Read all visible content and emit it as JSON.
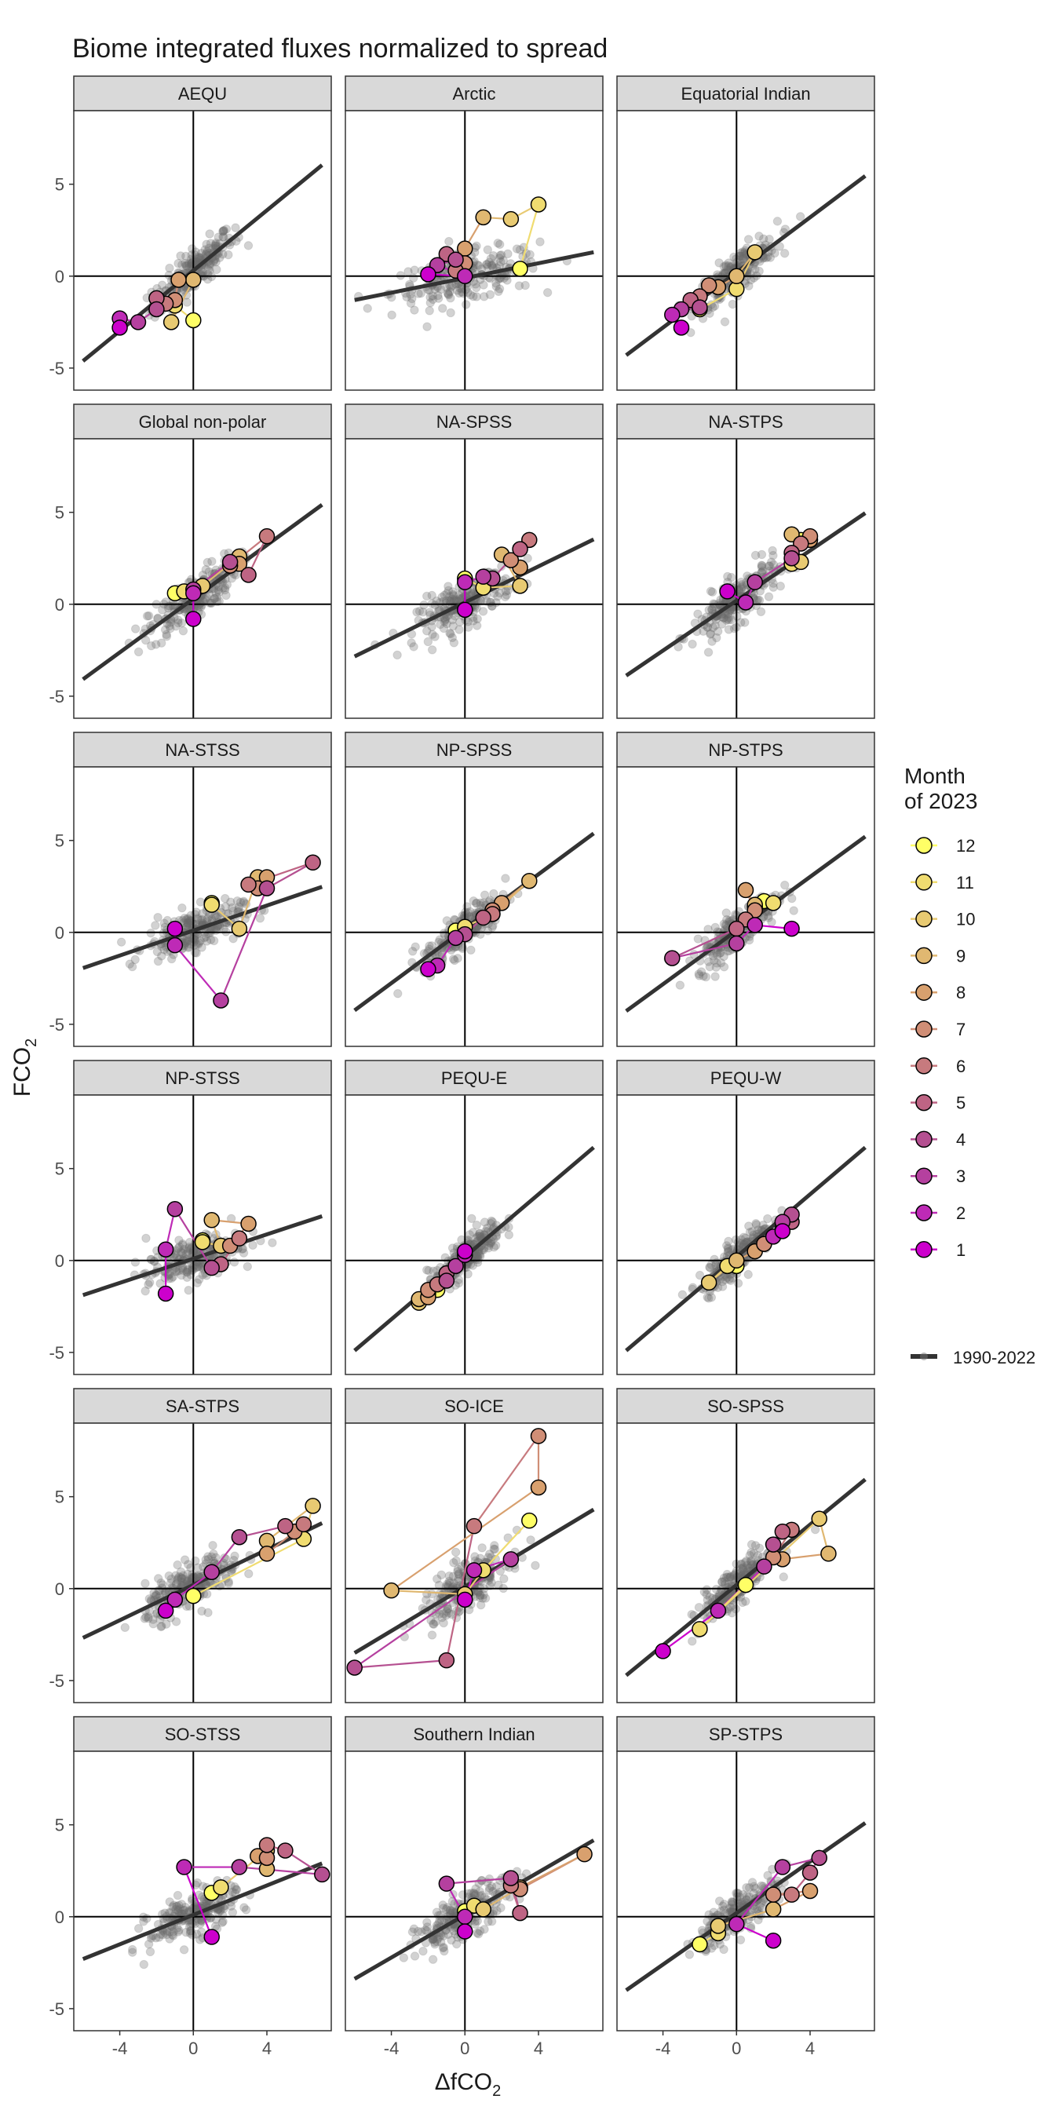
{
  "chart_data": {
    "type": "scatter",
    "title": "Biome integrated fluxes normalized to spread",
    "xlabel": "ΔfCO",
    "xlabel_sub": "2",
    "ylabel": "FCO",
    "ylabel_sub": "2",
    "xlim": [
      -6.5,
      7.5
    ],
    "ylim": [
      -6.2,
      9.0
    ],
    "x_ticks": [
      -4,
      0,
      4
    ],
    "y_ticks": [
      -5,
      0,
      5
    ],
    "x_tick_labels": [
      "-4",
      "0",
      "4"
    ],
    "y_tick_labels": [
      "-5",
      "0",
      "5"
    ],
    "legend": {
      "title_line1": "Month",
      "title_line2": "of 2023",
      "position": "right",
      "months": [
        "12",
        "11",
        "10",
        "9",
        "8",
        "7",
        "6",
        "5",
        "4",
        "3",
        "2",
        "1"
      ],
      "line_label": "1990-2022"
    },
    "month_colors": [
      "#CC00CC",
      "#BE2AB6",
      "#B5409F",
      "#B55091",
      "#BE6484",
      "#C77A7E",
      "#D08E76",
      "#D8A06E",
      "#E0B871",
      "#E8CA72",
      "#F0DC70",
      "#FFFF66"
    ],
    "panels": [
      {
        "name": "AEQU",
        "slope": 0.82,
        "intercept": 0.3,
        "spread": [
          1.1,
          1.0
        ],
        "points": [
          [
            -4,
            -2.8
          ],
          [
            -4,
            -2.3
          ],
          [
            -3,
            -2.5
          ],
          [
            -2,
            -1.8
          ],
          [
            -2,
            -1.2
          ],
          [
            -1.5,
            -1.5
          ],
          [
            -1,
            -1.3
          ],
          [
            -0.8,
            -0.2
          ],
          [
            0,
            -0.2
          ],
          [
            -1.2,
            -2.5
          ],
          [
            -1,
            -1.6
          ],
          [
            0,
            -2.4
          ]
        ]
      },
      {
        "name": "Arctic",
        "slope": 0.2,
        "intercept": -0.1,
        "spread": [
          2.0,
          1.2
        ],
        "points": [
          [
            -2,
            0.1
          ],
          [
            0,
            0
          ],
          [
            -1.5,
            0.6
          ],
          [
            -0.5,
            0.9
          ],
          [
            -1,
            1.2
          ],
          [
            -0.5,
            0.3
          ],
          [
            0,
            0.7
          ],
          [
            0,
            1.5
          ],
          [
            1,
            3.2
          ],
          [
            2.5,
            3.1
          ],
          [
            4,
            3.9
          ],
          [
            3,
            0.4
          ]
        ]
      },
      {
        "name": "Equatorial Indian",
        "slope": 0.75,
        "intercept": 0.2,
        "spread": [
          1.1,
          1.0
        ],
        "points": [
          [
            -3,
            -2.8
          ],
          [
            -3.5,
            -2.1
          ],
          [
            -3,
            -1.8
          ],
          [
            -2,
            -1.7
          ],
          [
            -2.5,
            -1.3
          ],
          [
            -2,
            -1.1
          ],
          [
            -1.5,
            -0.5
          ],
          [
            -1,
            -0.6
          ],
          [
            0,
            0
          ],
          [
            1,
            1.3
          ],
          [
            0,
            -0.7
          ],
          [
            -2,
            -1.8
          ]
        ]
      },
      {
        "name": "Global non-polar",
        "slope": 0.73,
        "intercept": 0.3,
        "spread": [
          1.2,
          1.1
        ],
        "points": [
          [
            0,
            -0.8
          ],
          [
            0,
            0.6
          ],
          [
            0,
            0.8
          ],
          [
            2,
            2.3
          ],
          [
            3,
            1.6
          ],
          [
            4,
            3.7
          ],
          [
            2,
            2.1
          ],
          [
            2.5,
            2.2
          ],
          [
            2.5,
            2.6
          ],
          [
            0.5,
            1.0
          ],
          [
            -0.5,
            0.7
          ],
          [
            -1,
            0.6
          ]
        ]
      },
      {
        "name": "NA-SPSS",
        "slope": 0.49,
        "intercept": 0.1,
        "spread": [
          1.3,
          1.1
        ],
        "points": [
          [
            0,
            -0.3
          ],
          [
            0,
            1.2
          ],
          [
            1,
            1.5
          ],
          [
            1.5,
            1.4
          ],
          [
            3,
            3.0
          ],
          [
            3.5,
            3.5
          ],
          [
            2.5,
            2.4
          ],
          [
            3,
            2.0
          ],
          [
            2,
            2.7
          ],
          [
            3,
            1.0
          ],
          [
            1,
            0.9
          ],
          [
            0,
            1.4
          ]
        ]
      },
      {
        "name": "NA-STPS",
        "slope": 0.68,
        "intercept": 0.2,
        "spread": [
          1.2,
          1.1
        ],
        "points": [
          [
            -0.5,
            0.7
          ],
          [
            0.5,
            0.1
          ],
          [
            1,
            1.2
          ],
          [
            3,
            2.5
          ],
          [
            3,
            2.8
          ],
          [
            3.5,
            3.3
          ],
          [
            4,
            3.7
          ],
          [
            4,
            3.5
          ],
          [
            3,
            3.8
          ],
          [
            3.5,
            2.3
          ],
          [
            3,
            2.2
          ],
          [
            3.5,
            3.5
          ]
        ]
      },
      {
        "name": "NA-STSS",
        "slope": 0.34,
        "intercept": 0.1,
        "spread": [
          1.3,
          1.0
        ],
        "points": [
          [
            -1,
            0.2
          ],
          [
            -1,
            -0.7
          ],
          [
            1.5,
            -3.7
          ],
          [
            4,
            2.4
          ],
          [
            6.5,
            3.8
          ],
          [
            3,
            2.6
          ],
          [
            3.5,
            2.4
          ],
          [
            4,
            3.0
          ],
          [
            3.5,
            3.0
          ],
          [
            2.5,
            0.2
          ],
          [
            1,
            1.5
          ],
          [
            1,
            1.6
          ]
        ]
      },
      {
        "name": "NP-SPSS",
        "slope": 0.74,
        "intercept": 0.2,
        "spread": [
          1.1,
          1.0
        ],
        "points": [
          [
            -2,
            -2.0
          ],
          [
            -1.5,
            -1.8
          ],
          [
            -0.5,
            -0.3
          ],
          [
            0,
            -0.1
          ],
          [
            1,
            0.8
          ],
          [
            1.5,
            1.0
          ],
          [
            1.5,
            1.2
          ],
          [
            2,
            1.6
          ],
          [
            3.5,
            2.8
          ],
          [
            1.5,
            1.0
          ],
          [
            0,
            0.3
          ],
          [
            -0.5,
            0.1
          ]
        ]
      },
      {
        "name": "NP-STPS",
        "slope": 0.73,
        "intercept": 0.1,
        "spread": [
          1.1,
          1.0
        ],
        "points": [
          [
            3,
            0.2
          ],
          [
            1,
            0.4
          ],
          [
            0,
            -0.6
          ],
          [
            -3.5,
            -1.4
          ],
          [
            0,
            0.2
          ],
          [
            0.5,
            0.7
          ],
          [
            1,
            1.2
          ],
          [
            0.5,
            2.3
          ],
          [
            1,
            1.5
          ],
          [
            1,
            1.4
          ],
          [
            2,
            1.6
          ],
          [
            1.5,
            1.7
          ]
        ]
      },
      {
        "name": "NP-STSS",
        "slope": 0.33,
        "intercept": 0.1,
        "spread": [
          1.3,
          1.0
        ],
        "points": [
          [
            -1.5,
            -1.8
          ],
          [
            -1.5,
            0.6
          ],
          [
            -1,
            2.8
          ],
          [
            1,
            -0.4
          ],
          [
            1.5,
            -0.2
          ],
          [
            2.5,
            1.2
          ],
          [
            2,
            0.8
          ],
          [
            3,
            2.0
          ],
          [
            1,
            2.2
          ],
          [
            1.5,
            0.8
          ],
          [
            0.5,
            1.0
          ],
          [
            0.5,
            1.1
          ]
        ]
      },
      {
        "name": "PEQU-E",
        "slope": 0.85,
        "intercept": 0.2,
        "spread": [
          1.0,
          0.9
        ],
        "points": [
          [
            0,
            0.5
          ],
          [
            0,
            0.3
          ],
          [
            -0.5,
            -0.3
          ],
          [
            -1,
            -1.1
          ],
          [
            -1,
            -0.7
          ],
          [
            -1.5,
            -1.3
          ],
          [
            -2,
            -1.6
          ],
          [
            -2,
            -2.0
          ],
          [
            -2.5,
            -2.1
          ],
          [
            -2.5,
            -2.3
          ],
          [
            -2,
            -1.8
          ],
          [
            -1.5,
            -1.6
          ]
        ]
      },
      {
        "name": "PEQU-W",
        "slope": 0.85,
        "intercept": 0.2,
        "spread": [
          1.0,
          0.9
        ],
        "points": [
          [
            2.5,
            1.6
          ],
          [
            2,
            1.3
          ],
          [
            2.5,
            2.1
          ],
          [
            3,
            2.5
          ],
          [
            3,
            2.1
          ],
          [
            2.5,
            1.7
          ],
          [
            1.5,
            0.9
          ],
          [
            1,
            0.5
          ],
          [
            0,
            0
          ],
          [
            -1.5,
            -1.2
          ],
          [
            -0.5,
            -0.3
          ],
          [
            0,
            -0.3
          ]
        ]
      },
      {
        "name": "SA-STPS",
        "slope": 0.48,
        "intercept": 0.2,
        "spread": [
          1.3,
          1.1
        ],
        "points": [
          [
            -1.5,
            -1.2
          ],
          [
            -1,
            -0.6
          ],
          [
            1,
            0.9
          ],
          [
            2.5,
            2.8
          ],
          [
            5,
            3.4
          ],
          [
            6,
            3.5
          ],
          [
            5.5,
            3.1
          ],
          [
            4,
            1.9
          ],
          [
            4,
            2.6
          ],
          [
            6.5,
            4.5
          ],
          [
            6,
            2.7
          ],
          [
            0,
            -0.4
          ]
        ]
      },
      {
        "name": "SO-ICE",
        "slope": 0.6,
        "intercept": 0.1,
        "spread": [
          1.2,
          1.2
        ],
        "points": [
          [
            0,
            -0.6
          ],
          [
            0.5,
            1.0
          ],
          [
            2.5,
            1.6
          ],
          [
            -6,
            -4.3
          ],
          [
            -1,
            -3.9
          ],
          [
            0.5,
            3.4
          ],
          [
            4,
            8.3
          ],
          [
            4,
            5.5
          ],
          [
            -4,
            -0.1
          ],
          [
            0,
            -0.3
          ],
          [
            1,
            1.0
          ],
          [
            3.5,
            3.7
          ]
        ]
      },
      {
        "name": "SO-SPSS",
        "slope": 0.82,
        "intercept": 0.2,
        "spread": [
          1.0,
          1.0
        ],
        "points": [
          [
            -4,
            -3.4
          ],
          [
            -1,
            -1.2
          ],
          [
            1.5,
            1.2
          ],
          [
            2,
            2.4
          ],
          [
            2.5,
            3.1
          ],
          [
            3,
            3.2
          ],
          [
            2,
            1.7
          ],
          [
            2.5,
            1.6
          ],
          [
            5,
            1.9
          ],
          [
            4.5,
            3.8
          ],
          [
            -2,
            -2.2
          ],
          [
            0.5,
            0.2
          ]
        ]
      },
      {
        "name": "SO-STSS",
        "slope": 0.4,
        "intercept": 0.1,
        "spread": [
          1.2,
          1.1
        ],
        "points": [
          [
            1,
            -1.1
          ],
          [
            -0.5,
            2.7
          ],
          [
            2.5,
            2.7
          ],
          [
            7,
            2.3
          ],
          [
            5,
            3.6
          ],
          [
            4,
            3.9
          ],
          [
            4,
            3.2
          ],
          [
            3.5,
            3.3
          ],
          [
            4,
            2.6
          ],
          [
            4,
            3.6
          ],
          [
            1.5,
            1.6
          ],
          [
            1,
            1.3
          ]
        ]
      },
      {
        "name": "Southern Indian",
        "slope": 0.58,
        "intercept": 0.1,
        "spread": [
          1.3,
          1.1
        ],
        "points": [
          [
            0,
            -0.8
          ],
          [
            0,
            0
          ],
          [
            -1,
            1.8
          ],
          [
            2.5,
            2.1
          ],
          [
            3,
            0.2
          ],
          [
            2.5,
            1.7
          ],
          [
            3,
            1.5
          ],
          [
            6.5,
            3.4
          ],
          [
            3,
            1.6
          ],
          [
            1,
            0.4
          ],
          [
            0.5,
            0.6
          ],
          [
            0,
            0.3
          ]
        ]
      },
      {
        "name": "SP-STPS",
        "slope": 0.7,
        "intercept": 0.2,
        "spread": [
          1.1,
          1.0
        ],
        "points": [
          [
            2,
            -1.3
          ],
          [
            0,
            -0.4
          ],
          [
            2.5,
            2.7
          ],
          [
            4.5,
            3.2
          ],
          [
            4,
            2.4
          ],
          [
            3,
            1.2
          ],
          [
            2,
            1.2
          ],
          [
            4,
            1.4
          ],
          [
            2,
            0.4
          ],
          [
            -1,
            -0.5
          ],
          [
            -1,
            -0.9
          ],
          [
            -2,
            -1.5
          ]
        ]
      }
    ]
  }
}
